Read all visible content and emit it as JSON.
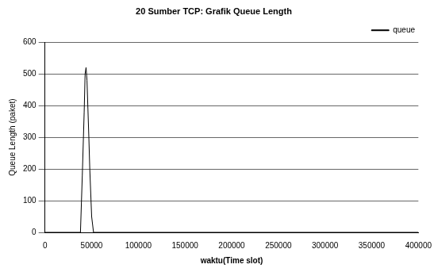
{
  "chart_data": {
    "type": "line",
    "title": "20 Sumber TCP: Grafik Queue Length",
    "x_label": "waktu(Time slot)",
    "y_label": "Queue Length (paket)",
    "x": [
      0,
      38000,
      40000,
      42000,
      43000,
      44000,
      45000,
      46000,
      47000,
      48000,
      50000,
      52000,
      400000
    ],
    "series": [
      {
        "name": "queue",
        "color": "#000000",
        "values": [
          0,
          0,
          180,
          380,
          500,
          520,
          480,
          390,
          300,
          200,
          50,
          0,
          0
        ]
      }
    ],
    "xlim": [
      0,
      400000
    ],
    "xticks": [
      0,
      50000,
      100000,
      150000,
      200000,
      250000,
      300000,
      350000,
      400000
    ],
    "ylim": [
      0,
      600
    ],
    "yticks": [
      0,
      100,
      200,
      300,
      400,
      500,
      600
    ],
    "grid": true,
    "legend": "upper right"
  }
}
